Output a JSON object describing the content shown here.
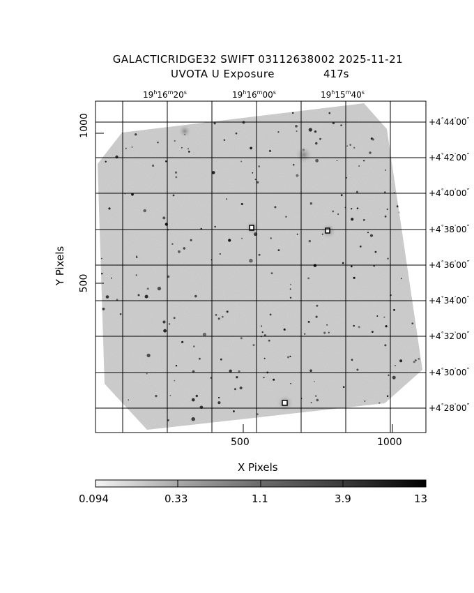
{
  "header": {
    "line1": "GALACTICRIDGE32 SWIFT 03112638002 2025-11-21",
    "line2_left": "UVOTA U Exposure",
    "line2_right": "417s"
  },
  "ra_ticks": [
    {
      "h": "19",
      "m": "16",
      "s": "20"
    },
    {
      "h": "19",
      "m": "16",
      "s": "00"
    },
    {
      "h": "19",
      "m": "15",
      "s": "40"
    }
  ],
  "dec_ticks": [
    {
      "deg": "+4",
      "min": "44",
      "sec": "00",
      "value": 44
    },
    {
      "deg": "+4",
      "min": "42",
      "sec": "00",
      "value": 42
    },
    {
      "deg": "+4",
      "min": "40",
      "sec": "00",
      "value": 40
    },
    {
      "deg": "+4",
      "min": "38",
      "sec": "00",
      "value": 38
    },
    {
      "deg": "+4",
      "min": "36",
      "sec": "00",
      "value": 36
    },
    {
      "deg": "+4",
      "min": "34",
      "sec": "00",
      "value": 34
    },
    {
      "deg": "+4",
      "min": "32",
      "sec": "00",
      "value": 32
    },
    {
      "deg": "+4",
      "min": "30",
      "sec": "00",
      "value": 30
    },
    {
      "deg": "+4",
      "min": "28",
      "sec": "00",
      "value": 28
    }
  ],
  "x_axis": {
    "label": "X Pixels",
    "ticks": [
      "500",
      "1000"
    ]
  },
  "y_axis": {
    "label": "Y Pixels",
    "ticks": [
      "500",
      "1000"
    ]
  },
  "colorbar": {
    "labels": [
      "0.094",
      "0.33",
      "1.1",
      "3.9",
      "13"
    ],
    "scale": "log",
    "colors": [
      "#f2f2f2",
      "#000000"
    ]
  },
  "image": {
    "background_color": "#c0c0c0",
    "frame_color": "#000000"
  }
}
